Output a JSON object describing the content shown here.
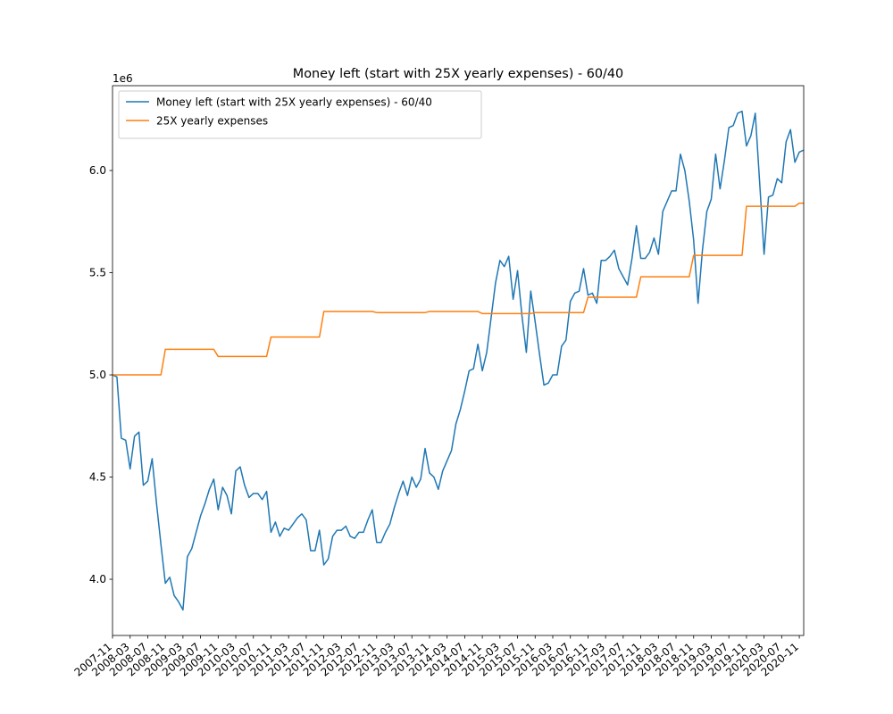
{
  "chart_data": {
    "type": "line",
    "title": "Money left (start with 25X yearly expenses) - 60/40",
    "y_offset_label": "1e6",
    "x": [
      "2007-11",
      "2007-12",
      "2008-01",
      "2008-02",
      "2008-03",
      "2008-04",
      "2008-05",
      "2008-06",
      "2008-07",
      "2008-08",
      "2008-09",
      "2008-10",
      "2008-11",
      "2008-12",
      "2009-01",
      "2009-02",
      "2009-03",
      "2009-04",
      "2009-05",
      "2009-06",
      "2009-07",
      "2009-08",
      "2009-09",
      "2009-10",
      "2009-11",
      "2009-12",
      "2010-01",
      "2010-02",
      "2010-03",
      "2010-04",
      "2010-05",
      "2010-06",
      "2010-07",
      "2010-08",
      "2010-09",
      "2010-10",
      "2010-11",
      "2010-12",
      "2011-01",
      "2011-02",
      "2011-03",
      "2011-04",
      "2011-05",
      "2011-06",
      "2011-07",
      "2011-08",
      "2011-09",
      "2011-10",
      "2011-11",
      "2011-12",
      "2012-01",
      "2012-02",
      "2012-03",
      "2012-04",
      "2012-05",
      "2012-06",
      "2012-07",
      "2012-08",
      "2012-09",
      "2012-10",
      "2012-11",
      "2012-12",
      "2013-01",
      "2013-02",
      "2013-03",
      "2013-04",
      "2013-05",
      "2013-06",
      "2013-07",
      "2013-08",
      "2013-09",
      "2013-10",
      "2013-11",
      "2013-12",
      "2014-01",
      "2014-02",
      "2014-03",
      "2014-04",
      "2014-05",
      "2014-06",
      "2014-07",
      "2014-08",
      "2014-09",
      "2014-10",
      "2014-11",
      "2014-12",
      "2015-01",
      "2015-02",
      "2015-03",
      "2015-04",
      "2015-05",
      "2015-06",
      "2015-07",
      "2015-08",
      "2015-09",
      "2015-10",
      "2015-11",
      "2015-12",
      "2016-01",
      "2016-02",
      "2016-03",
      "2016-04",
      "2016-05",
      "2016-06",
      "2016-07",
      "2016-08",
      "2016-09",
      "2016-10",
      "2016-11",
      "2016-12",
      "2017-01",
      "2017-02",
      "2017-03",
      "2017-04",
      "2017-05",
      "2017-06",
      "2017-07",
      "2017-08",
      "2017-09",
      "2017-10",
      "2017-11",
      "2017-12",
      "2018-01",
      "2018-02",
      "2018-03",
      "2018-04",
      "2018-05",
      "2018-06",
      "2018-07",
      "2018-08",
      "2018-09",
      "2018-10",
      "2018-11",
      "2018-12",
      "2019-01",
      "2019-02",
      "2019-03",
      "2019-04",
      "2019-05",
      "2019-06",
      "2019-07",
      "2019-08",
      "2019-09",
      "2019-10",
      "2019-11",
      "2019-12",
      "2020-01",
      "2020-02",
      "2020-03",
      "2020-04",
      "2020-05",
      "2020-06",
      "2020-07",
      "2020-08",
      "2020-09",
      "2020-10",
      "2020-11",
      "2020-12"
    ],
    "series": [
      {
        "name": "Money left (start with 25X yearly expenses) - 60/40",
        "color": "#1f77b4",
        "values": [
          5.0,
          4.99,
          4.69,
          4.68,
          4.54,
          4.7,
          4.72,
          4.46,
          4.48,
          4.59,
          4.37,
          4.17,
          3.98,
          4.01,
          3.92,
          3.89,
          3.85,
          4.11,
          4.15,
          4.23,
          4.31,
          4.37,
          4.44,
          4.49,
          4.34,
          4.45,
          4.41,
          4.32,
          4.53,
          4.55,
          4.46,
          4.4,
          4.42,
          4.42,
          4.39,
          4.43,
          4.23,
          4.28,
          4.21,
          4.25,
          4.24,
          4.27,
          4.3,
          4.32,
          4.29,
          4.14,
          4.14,
          4.24,
          4.07,
          4.1,
          4.21,
          4.24,
          4.24,
          4.26,
          4.21,
          4.2,
          4.23,
          4.23,
          4.29,
          4.34,
          4.18,
          4.18,
          4.23,
          4.27,
          4.35,
          4.42,
          4.48,
          4.41,
          4.5,
          4.45,
          4.49,
          4.64,
          4.52,
          4.5,
          4.44,
          4.53,
          4.58,
          4.63,
          4.76,
          4.83,
          4.92,
          5.02,
          5.03,
          5.15,
          5.02,
          5.11,
          5.28,
          5.45,
          5.56,
          5.53,
          5.58,
          5.37,
          5.51,
          5.29,
          5.11,
          5.41,
          5.26,
          5.1,
          4.95,
          4.96,
          5.0,
          5.0,
          5.14,
          5.17,
          5.36,
          5.4,
          5.41,
          5.52,
          5.39,
          5.4,
          5.35,
          5.56,
          5.56,
          5.58,
          5.61,
          5.52,
          5.48,
          5.44,
          5.57,
          5.73,
          5.57,
          5.57,
          5.6,
          5.67,
          5.59,
          5.8,
          5.85,
          5.9,
          5.9,
          6.08,
          6.0,
          5.85,
          5.66,
          5.35,
          5.61,
          5.8,
          5.86,
          6.08,
          5.91,
          6.05,
          6.21,
          6.22,
          6.28,
          6.29,
          6.12,
          6.17,
          6.28,
          5.94,
          5.59,
          5.87,
          5.88,
          5.96,
          5.94,
          6.14,
          6.2,
          6.04,
          6.09,
          6.1
        ]
      },
      {
        "name": "25X yearly expenses",
        "color": "#ff7f0e",
        "values": [
          5.0,
          5.0,
          5.0,
          5.0,
          5.0,
          5.0,
          5.0,
          5.0,
          5.0,
          5.0,
          5.0,
          5.0,
          5.125,
          5.125,
          5.125,
          5.125,
          5.125,
          5.125,
          5.125,
          5.125,
          5.125,
          5.125,
          5.125,
          5.125,
          5.09,
          5.09,
          5.09,
          5.09,
          5.09,
          5.09,
          5.09,
          5.09,
          5.09,
          5.09,
          5.09,
          5.09,
          5.185,
          5.185,
          5.185,
          5.185,
          5.185,
          5.185,
          5.185,
          5.185,
          5.185,
          5.185,
          5.185,
          5.185,
          5.31,
          5.31,
          5.31,
          5.31,
          5.31,
          5.31,
          5.31,
          5.31,
          5.31,
          5.31,
          5.31,
          5.31,
          5.305,
          5.305,
          5.305,
          5.305,
          5.305,
          5.305,
          5.305,
          5.305,
          5.305,
          5.305,
          5.305,
          5.305,
          5.31,
          5.31,
          5.31,
          5.31,
          5.31,
          5.31,
          5.31,
          5.31,
          5.31,
          5.31,
          5.31,
          5.31,
          5.3,
          5.3,
          5.3,
          5.3,
          5.3,
          5.3,
          5.3,
          5.3,
          5.3,
          5.3,
          5.3,
          5.3,
          5.305,
          5.305,
          5.305,
          5.305,
          5.305,
          5.305,
          5.305,
          5.305,
          5.305,
          5.305,
          5.305,
          5.305,
          5.38,
          5.38,
          5.38,
          5.38,
          5.38,
          5.38,
          5.38,
          5.38,
          5.38,
          5.38,
          5.38,
          5.38,
          5.48,
          5.48,
          5.48,
          5.48,
          5.48,
          5.48,
          5.48,
          5.48,
          5.48,
          5.48,
          5.48,
          5.48,
          5.585,
          5.585,
          5.585,
          5.585,
          5.585,
          5.585,
          5.585,
          5.585,
          5.585,
          5.585,
          5.585,
          5.585,
          5.825,
          5.825,
          5.825,
          5.825,
          5.825,
          5.825,
          5.825,
          5.825,
          5.825,
          5.825,
          5.825,
          5.825,
          5.84,
          5.84
        ]
      }
    ],
    "xlim": [
      "2007-11",
      "2020-12"
    ],
    "xticks": [
      "2007-11",
      "2008-03",
      "2008-07",
      "2008-11",
      "2009-03",
      "2009-07",
      "2009-11",
      "2010-03",
      "2010-07",
      "2010-11",
      "2011-03",
      "2011-07",
      "2011-11",
      "2012-03",
      "2012-07",
      "2012-11",
      "2013-03",
      "2013-07",
      "2013-11",
      "2014-03",
      "2014-07",
      "2014-11",
      "2015-03",
      "2015-07",
      "2015-11",
      "2016-03",
      "2016-07",
      "2016-11",
      "2017-03",
      "2017-07",
      "2017-11",
      "2018-03",
      "2018-07",
      "2018-11",
      "2019-03",
      "2019-07",
      "2019-11",
      "2020-03",
      "2020-07",
      "2020-11"
    ],
    "ylim": [
      3.725,
      6.415
    ],
    "yticks": [
      {
        "value": 4,
        "label": "4.0"
      },
      {
        "value": 4.5,
        "label": "4.5"
      },
      {
        "value": 5,
        "label": "5.0"
      },
      {
        "value": 5.5,
        "label": "5.5"
      },
      {
        "value": 6,
        "label": "6.0"
      }
    ],
    "legend": "upper left"
  }
}
